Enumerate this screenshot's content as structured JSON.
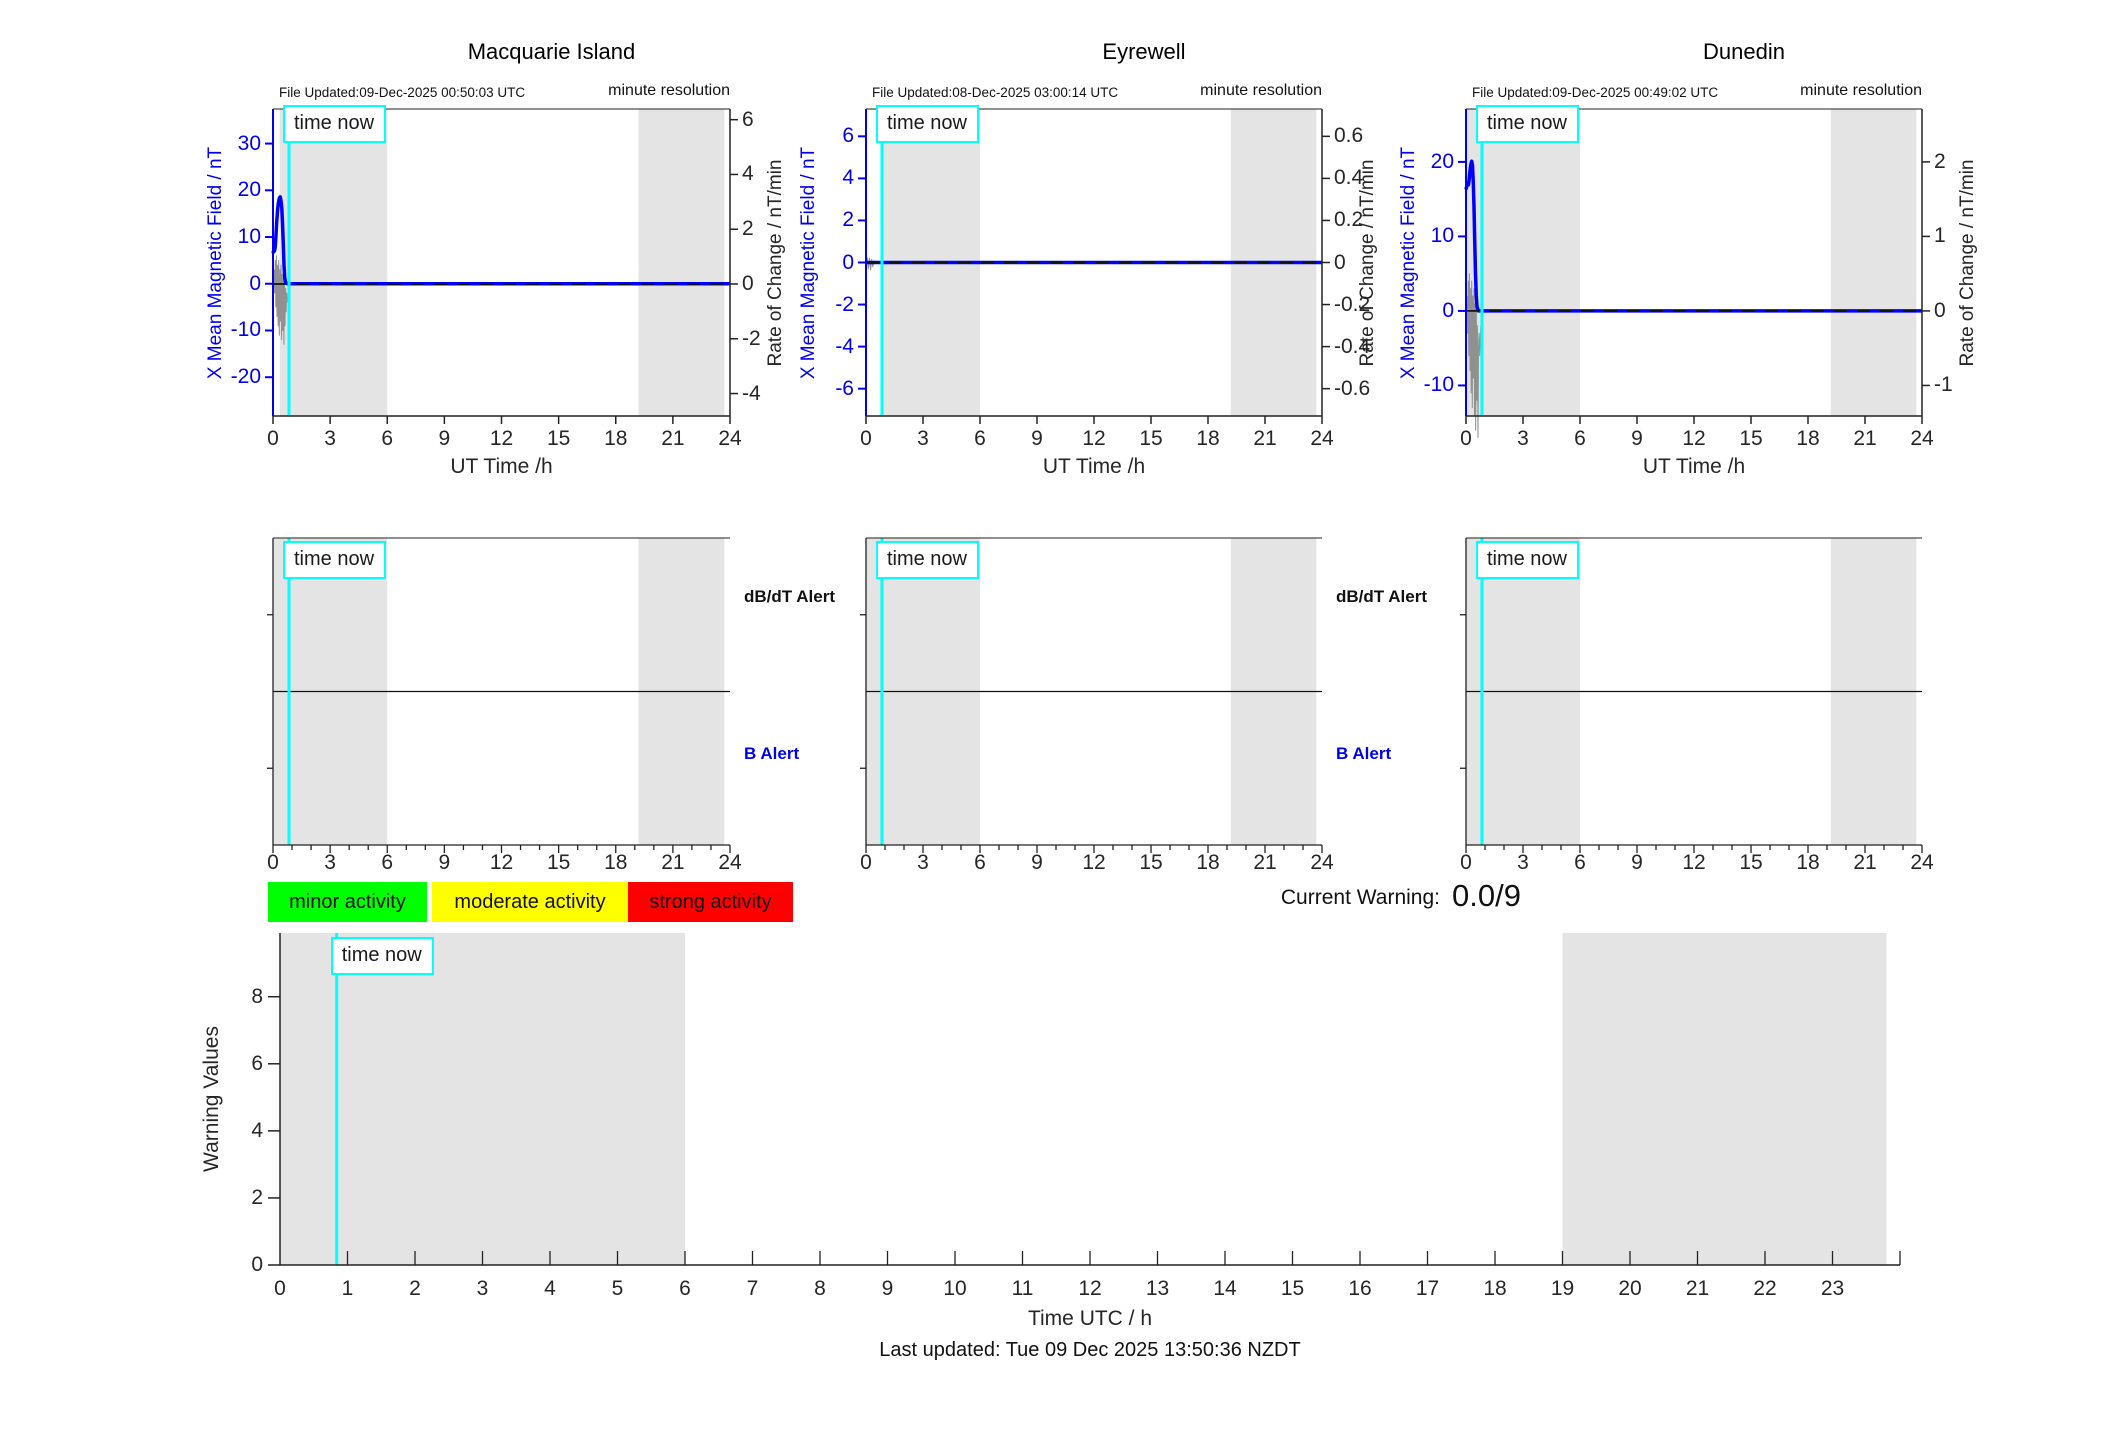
{
  "page": {
    "time_now_label": "time now"
  },
  "chart_data": {
    "top_plots": [
      {
        "type": "line",
        "station": "Macquarie Island",
        "file_updated": "File Updated:09-Dec-2025 00:50:03 UTC",
        "resolution_note": "minute resolution",
        "x_axis": {
          "label": "UT Time /h",
          "lim": [
            0,
            24
          ],
          "ticks": [
            0,
            3,
            6,
            9,
            12,
            15,
            18,
            21,
            24
          ]
        },
        "left_axis": {
          "label": "X Mean Magnetic Field / nT",
          "color": "#0000EE",
          "ticks": [
            30,
            20,
            10,
            0,
            -10,
            -20
          ],
          "lim": [
            -28.3,
            37.4
          ]
        },
        "right_axis": {
          "label": "Rate of Change / nT/min",
          "ticks": [
            6,
            4,
            2,
            0,
            -2,
            -4
          ],
          "lim": [
            -4.82,
            6.39
          ]
        },
        "shaded_hours": [
          [
            0.35,
            6
          ],
          [
            19.2,
            23.7
          ]
        ],
        "time_now_hour": 0.84,
        "series": [
          {
            "name": "raw variation",
            "axis": "left",
            "color": "#909090",
            "width": 1,
            "points": [
              [
                0.06,
                3
              ],
              [
                0.09,
                -2
              ],
              [
                0.12,
                5
              ],
              [
                0.15,
                -5
              ],
              [
                0.18,
                6
              ],
              [
                0.21,
                -7
              ],
              [
                0.24,
                4
              ],
              [
                0.27,
                -9
              ],
              [
                0.3,
                5
              ],
              [
                0.33,
                -11
              ],
              [
                0.36,
                3
              ],
              [
                0.39,
                -8
              ],
              [
                0.42,
                4
              ],
              [
                0.45,
                -12
              ],
              [
                0.48,
                2
              ],
              [
                0.51,
                -10
              ],
              [
                0.54,
                3
              ],
              [
                0.57,
                -13
              ],
              [
                0.6,
                1
              ],
              [
                0.63,
                -9
              ],
              [
                0.66,
                -1
              ],
              [
                0.69,
                -6
              ],
              [
                0.72,
                -2
              ],
              [
                0.75,
                -4
              ]
            ]
          },
          {
            "name": "X Mean Magnetic Field",
            "axis": "left",
            "color": "#0000FF",
            "width": 3.5,
            "points": [
              [
                0,
                6.5
              ],
              [
                0.04,
                7.2
              ],
              [
                0.08,
                7.0
              ],
              [
                0.12,
                8.0
              ],
              [
                0.16,
                10.5
              ],
              [
                0.2,
                13.5
              ],
              [
                0.24,
                15.8
              ],
              [
                0.28,
                17.2
              ],
              [
                0.33,
                18.3
              ],
              [
                0.38,
                18.6
              ],
              [
                0.42,
                17.8
              ],
              [
                0.46,
                16.2
              ],
              [
                0.5,
                13.0
              ],
              [
                0.54,
                8.5
              ],
              [
                0.58,
                4.0
              ],
              [
                0.62,
                1.2
              ],
              [
                0.66,
                0.3
              ],
              [
                0.75,
                0
              ],
              [
                24,
                0
              ]
            ]
          },
          {
            "name": "Rate of Change",
            "axis": "right",
            "color": "#111111",
            "width": 1.7,
            "style": "dashed",
            "points": [
              [
                0,
                0
              ],
              [
                24,
                0
              ]
            ]
          }
        ]
      },
      {
        "type": "line",
        "station": "Eyrewell",
        "file_updated": "File Updated:08-Dec-2025 03:00:14 UTC",
        "resolution_note": "minute resolution",
        "x_axis": {
          "label": "UT Time /h",
          "lim": [
            0,
            24
          ],
          "ticks": [
            0,
            3,
            6,
            9,
            12,
            15,
            18,
            21,
            24
          ]
        },
        "left_axis": {
          "label": "X Mean Magnetic Field / nT",
          "color": "#0000EE",
          "ticks": [
            6,
            4,
            2,
            0,
            -2,
            -4,
            -6
          ],
          "lim": [
            -7.3,
            7.3
          ]
        },
        "right_axis": {
          "label": "Rate of Change / nT/min",
          "ticks": [
            0.6,
            0.4,
            0.2,
            0,
            -0.2,
            -0.4,
            -0.6
          ],
          "lim": [
            -0.73,
            0.73
          ]
        },
        "shaded_hours": [
          [
            0.85,
            6
          ],
          [
            19.2,
            23.7
          ]
        ],
        "time_now_hour": 0.84,
        "series": [
          {
            "name": "raw variation",
            "axis": "left",
            "color": "#909090",
            "width": 1,
            "points": [
              [
                0.06,
                0.25
              ],
              [
                0.12,
                -0.3
              ],
              [
                0.18,
                0.2
              ],
              [
                0.24,
                -0.35
              ],
              [
                0.3,
                0.15
              ],
              [
                0.36,
                -0.2
              ],
              [
                0.45,
                0.1
              ]
            ]
          },
          {
            "name": "X Mean Magnetic Field",
            "axis": "left",
            "color": "#0000FF",
            "width": 3.5,
            "points": [
              [
                0,
                0
              ],
              [
                24,
                0
              ]
            ]
          },
          {
            "name": "Rate of Change",
            "axis": "right",
            "color": "#111111",
            "width": 1.7,
            "style": "dashed",
            "points": [
              [
                0,
                0
              ],
              [
                24,
                0
              ]
            ]
          }
        ]
      },
      {
        "type": "line",
        "station": "Dunedin",
        "file_updated": "File Updated:09-Dec-2025 00:49:02 UTC",
        "resolution_note": "minute resolution",
        "x_axis": {
          "label": "UT Time /h",
          "lim": [
            0,
            24
          ],
          "ticks": [
            0,
            3,
            6,
            9,
            12,
            15,
            18,
            21,
            24
          ]
        },
        "left_axis": {
          "label": "X Mean Magnetic Field / nT",
          "color": "#0000EE",
          "ticks": [
            20,
            10,
            0,
            -10
          ],
          "lim": [
            -14.1,
            27.1
          ]
        },
        "right_axis": {
          "label": "Rate of Change / nT/min",
          "ticks": [
            2,
            1,
            0,
            -1
          ],
          "lim": [
            -1.41,
            2.71
          ]
        },
        "shaded_hours": [
          [
            0,
            6
          ],
          [
            19.2,
            23.7
          ]
        ],
        "time_now_hour": 0.84,
        "series": [
          {
            "name": "raw variation",
            "axis": "left",
            "color": "#909090",
            "width": 1,
            "points": [
              [
                0.06,
                2
              ],
              [
                0.09,
                -3
              ],
              [
                0.12,
                4
              ],
              [
                0.15,
                -6
              ],
              [
                0.18,
                5
              ],
              [
                0.21,
                -8
              ],
              [
                0.24,
                3
              ],
              [
                0.27,
                -11
              ],
              [
                0.3,
                4
              ],
              [
                0.33,
                -13
              ],
              [
                0.36,
                2
              ],
              [
                0.39,
                -9
              ],
              [
                0.42,
                3
              ],
              [
                0.45,
                -14
              ],
              [
                0.48,
                1
              ],
              [
                0.51,
                -16
              ],
              [
                0.54,
                2
              ],
              [
                0.57,
                -12
              ],
              [
                0.6,
                -2
              ],
              [
                0.63,
                -17
              ],
              [
                0.66,
                -5
              ],
              [
                0.69,
                -3
              ],
              [
                0.72,
                -6
              ],
              [
                0.78,
                -2
              ]
            ]
          },
          {
            "name": "X Mean Magnetic Field",
            "axis": "left",
            "color": "#0000FF",
            "width": 3.5,
            "points": [
              [
                0,
                16.3
              ],
              [
                0.04,
                16.8
              ],
              [
                0.08,
                17.2
              ],
              [
                0.12,
                16.9
              ],
              [
                0.16,
                17.4
              ],
              [
                0.2,
                18.6
              ],
              [
                0.25,
                19.6
              ],
              [
                0.3,
                20.1
              ],
              [
                0.34,
                19.5
              ],
              [
                0.38,
                17.5
              ],
              [
                0.42,
                14.0
              ],
              [
                0.46,
                9.5
              ],
              [
                0.5,
                5.0
              ],
              [
                0.54,
                2.0
              ],
              [
                0.58,
                0.6
              ],
              [
                0.65,
                0
              ],
              [
                24,
                0
              ]
            ]
          },
          {
            "name": "Rate of Change",
            "axis": "right",
            "color": "#111111",
            "width": 1.7,
            "style": "dashed",
            "points": [
              [
                0,
                0
              ],
              [
                24,
                0
              ]
            ]
          }
        ]
      }
    ],
    "alert_plots": [
      {
        "station": "Macquarie Island",
        "threshold_line_frac": 0.5,
        "x_axis": {
          "lim": [
            0,
            24
          ],
          "ticks": [
            0,
            3,
            6,
            9,
            12,
            15,
            18,
            21,
            24
          ]
        },
        "shaded_hours": [
          [
            0,
            6
          ],
          [
            19.2,
            23.7
          ]
        ],
        "time_now_hour": 0.84,
        "right_labels": [
          {
            "text": "dB/dT Alert",
            "color": "#111111"
          },
          {
            "text": "B Alert",
            "color": "#0000EE"
          }
        ]
      },
      {
        "station": "Eyrewell",
        "threshold_line_frac": 0.5,
        "x_axis": {
          "lim": [
            0,
            24
          ],
          "ticks": [
            0,
            3,
            6,
            9,
            12,
            15,
            18,
            21,
            24
          ]
        },
        "shaded_hours": [
          [
            0,
            6
          ],
          [
            19.2,
            23.7
          ]
        ],
        "time_now_hour": 0.84,
        "right_labels": [
          {
            "text": "dB/dT Alert",
            "color": "#111111"
          },
          {
            "text": "B Alert",
            "color": "#0000EE"
          }
        ]
      },
      {
        "station": "Dunedin",
        "threshold_line_frac": 0.5,
        "x_axis": {
          "lim": [
            0,
            24
          ],
          "ticks": [
            0,
            3,
            6,
            9,
            12,
            15,
            18,
            21,
            24
          ]
        },
        "shaded_hours": [
          [
            0,
            6
          ],
          [
            19.2,
            23.7
          ]
        ],
        "time_now_hour": 0.84,
        "right_labels": null
      }
    ],
    "warning_plot": {
      "type": "line",
      "y_axis": {
        "label": "Warning Values",
        "ticks": [
          0,
          2,
          4,
          6,
          8
        ],
        "lim": [
          0,
          9.9
        ]
      },
      "x_axis": {
        "label": "Time UTC / h",
        "lim": [
          0,
          24
        ],
        "tick_labels": [
          0,
          1,
          2,
          3,
          4,
          5,
          6,
          7,
          8,
          9,
          10,
          11,
          12,
          13,
          14,
          15,
          16,
          17,
          18,
          19,
          20,
          21,
          22,
          23
        ]
      },
      "shaded_hours": [
        [
          0,
          6
        ],
        [
          19,
          23.8
        ]
      ],
      "time_now_hour": 0.84,
      "series": []
    }
  },
  "legend": {
    "items": [
      {
        "label": "minor activity",
        "color": "#00FF00"
      },
      {
        "label": "moderate activity",
        "color": "#FFFF00"
      },
      {
        "label": "strong activity",
        "color": "#FF0000"
      }
    ]
  },
  "current_warning": {
    "label": "Current Warning:",
    "value": "0.0/9"
  },
  "footer": {
    "last_updated": "Last updated: Tue 09 Dec 2025 13:50:36 NZDT"
  }
}
